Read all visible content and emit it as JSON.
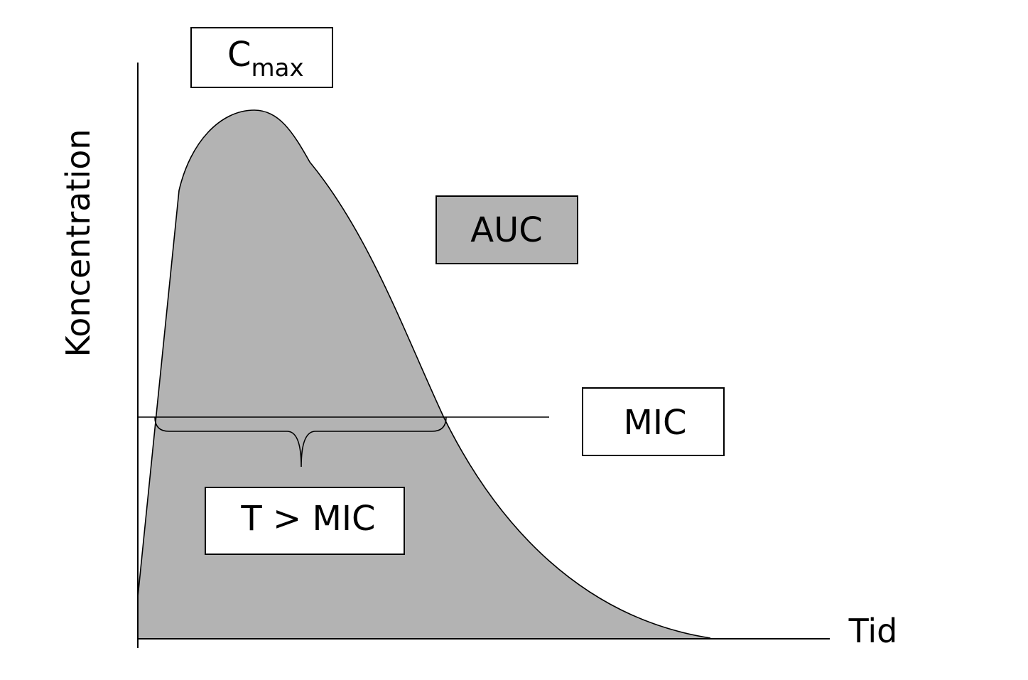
{
  "diagram": {
    "axes": {
      "y_label": "Koncentration",
      "x_label": "Tid"
    },
    "labels": {
      "cmax_main": "C",
      "cmax_sub": "max",
      "auc": "AUC",
      "mic": "MIC",
      "t_over_mic": "T > MIC"
    },
    "colors": {
      "area_fill": "#b3b3b3",
      "auc_box_fill": "#b3b3b3",
      "box_fill": "#ffffff",
      "stroke": "#000000"
    }
  }
}
